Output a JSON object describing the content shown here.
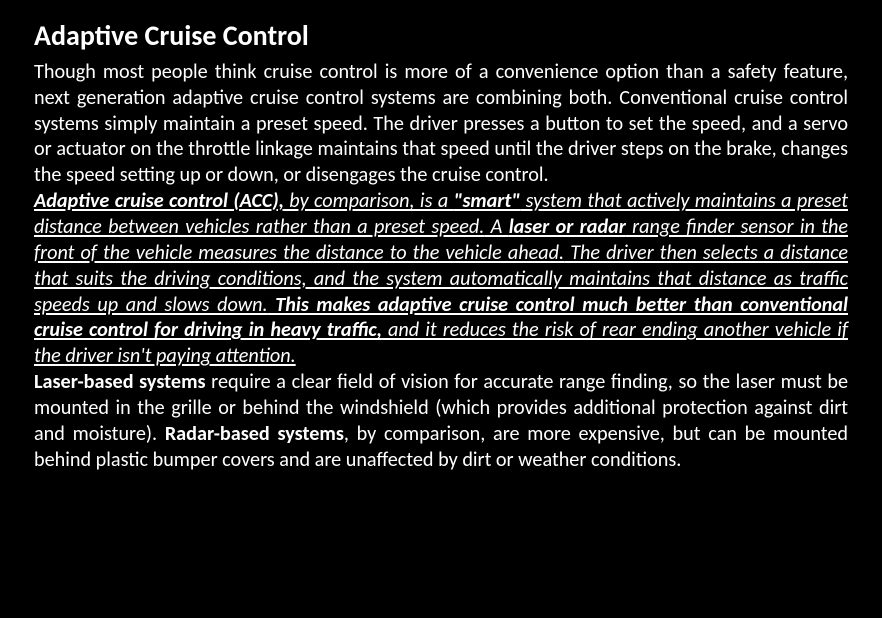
{
  "colors": {
    "background": "#000000",
    "text": "#ffffff"
  },
  "typography": {
    "family": "Calibri",
    "title_size_pt": 21,
    "body_size_pt": 15,
    "line_height": 1.28,
    "align": "justify"
  },
  "title": "Adaptive Cruise Control",
  "p1": {
    "s1": "Though most people think cruise control is more of a convenience option than a safety feature, next generation adaptive cruise control systems are combining both. Conventional cruise control systems simply maintain a preset speed. The driver presses a button to set the speed, and a servo or actuator on the throttle linkage maintains that speed until the driver steps on the brake, changes the speed setting up or down, or disengages the cruise control."
  },
  "p2": {
    "s1a": "Adaptive cruise control (ACC),",
    "s1b": " by comparison, is a ",
    "s1c": "\"smart\"",
    "s1d": " system that actively maintains a preset distance between vehicles rather than a preset speed.",
    "s2a": " A ",
    "s2b": "laser or radar",
    "s2c": " range finder sensor in the front of the vehicle measures the distance to the vehicle ahead.",
    "s3": " The driver then selects a distance that suits the driving conditions, and the system automatically maintains that distance as traffic speeds up and slows down.",
    "s4a": " This makes adaptive cruise control much better than conventional cruise control for driving in heavy traffic,",
    "s4b": " and it reduces the risk of rear ending another vehicle if the driver isn't paying attention."
  },
  "p3": {
    "s1a": "Laser-based systems",
    "s1b": " require a clear field of vision for accurate range finding, so the laser must be mounted in the grille or behind the windshield (which provides additional protection against dirt and moisture). ",
    "s2a": "Radar-based systems",
    "s2b": ", by comparison, are more expensive, but can be mounted behind plastic bumper covers and are unaffected by dirt or weather conditions."
  }
}
